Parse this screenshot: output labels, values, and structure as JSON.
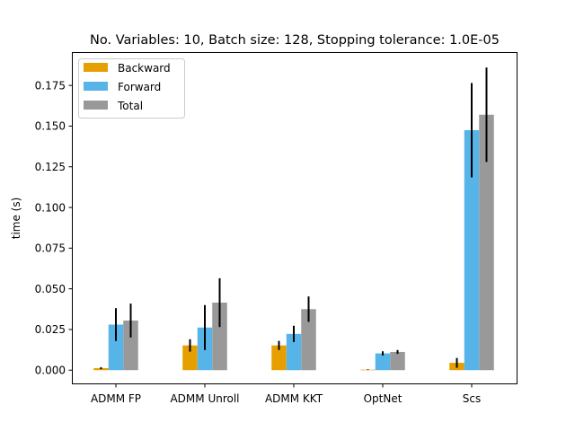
{
  "chart_data": {
    "type": "bar",
    "title": "No. Variables: 10, Batch size: 128, Stopping tolerance: 1.0E-05",
    "xlabel": "",
    "ylabel": "time (s)",
    "ylim": [
      -0.0087,
      0.1955
    ],
    "yticks": [
      0.0,
      0.025,
      0.05,
      0.075,
      0.1,
      0.125,
      0.15,
      0.175
    ],
    "ytick_labels": [
      "0.000",
      "0.025",
      "0.050",
      "0.075",
      "0.100",
      "0.125",
      "0.150",
      "0.175"
    ],
    "categories": [
      "ADMM FP",
      "ADMM Unroll",
      "ADMM KKT",
      "OptNet",
      "Scs"
    ],
    "legend_position": "top-left",
    "grid": false,
    "series": [
      {
        "name": "Backward",
        "color": "#e69f00",
        "values": [
          0.0012,
          0.0152,
          0.0152,
          0.0003,
          0.0045
        ],
        "errors": [
          0.0006,
          0.0038,
          0.0028,
          0.0002,
          0.003
        ]
      },
      {
        "name": "Forward",
        "color": "#56b4e9",
        "values": [
          0.028,
          0.0262,
          0.0223,
          0.0103,
          0.1475
        ],
        "errors": [
          0.0101,
          0.0138,
          0.005,
          0.0013,
          0.029
        ]
      },
      {
        "name": "Total",
        "color": "#999999",
        "values": [
          0.0305,
          0.0415,
          0.0375,
          0.0112,
          0.157
        ],
        "errors": [
          0.0104,
          0.015,
          0.0078,
          0.0012,
          0.029
        ]
      }
    ]
  }
}
